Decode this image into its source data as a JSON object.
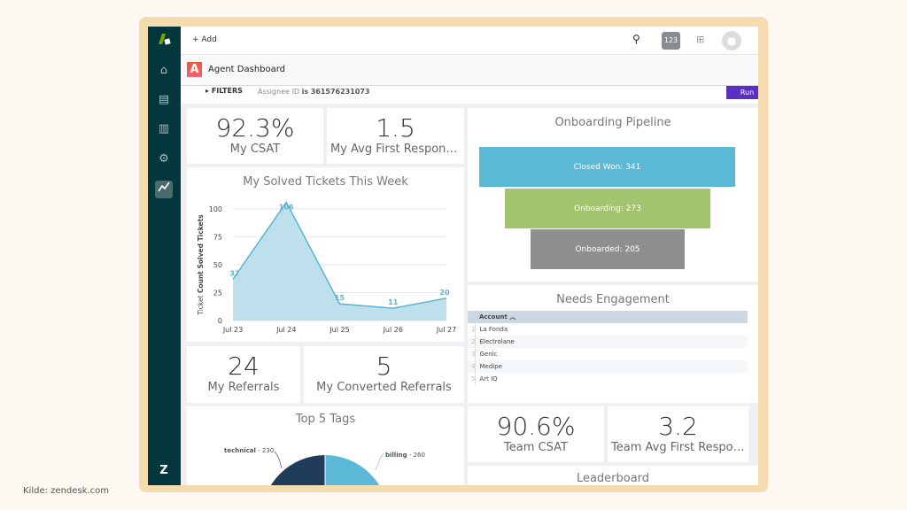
{
  "caption": "Kilde: zendesk.com",
  "topbar": {
    "add_label": "+ Add",
    "badge": "123"
  },
  "header": {
    "logo_letter": "A",
    "title": "Agent Dashboard"
  },
  "filters": {
    "label": "FILTERS",
    "text": "Assignee ID",
    "op": "is",
    "value": "361576231073",
    "run": "Run"
  },
  "kpis": {
    "csat": {
      "value": "92.3%",
      "label": "My CSAT"
    },
    "frt": {
      "value": "1.5",
      "label": "My Avg First Response ..."
    },
    "referrals": {
      "value": "24",
      "label": "My Referrals"
    },
    "converted": {
      "value": "5",
      "label": "My Converted Referrals"
    },
    "team_csat": {
      "value": "90.6%",
      "label": "Team CSAT"
    },
    "team_frt": {
      "value": "3.2",
      "label": "Team Avg First Respon..."
    }
  },
  "chart_data": [
    {
      "type": "area",
      "title": "My Solved Tickets This Week",
      "ylabel_prefix": "Ticket",
      "ylabel": "Count Solved Tickets",
      "categories": [
        "Jul 23",
        "Jul 24",
        "Jul 25",
        "Jul 26",
        "Jul 27"
      ],
      "values": [
        37,
        106,
        15,
        11,
        20
      ],
      "yticks": [
        0,
        25,
        50,
        75,
        100
      ],
      "ylim": [
        0,
        100
      ],
      "grid": true,
      "color": "#5bb4d0"
    },
    {
      "type": "funnel",
      "title": "Onboarding Pipeline",
      "stages": [
        {
          "label": "Closed Won: 341",
          "value": 341,
          "color": "#5bb8d6"
        },
        {
          "label": "Onboarding: 273",
          "value": 273,
          "color": "#a3c46e"
        },
        {
          "label": "Onboarded: 205",
          "value": 205,
          "color": "#8f8f8f"
        }
      ]
    },
    {
      "type": "pie",
      "title": "Top 5 Tags",
      "slices": [
        {
          "name": "technical",
          "value": 230,
          "color": "#1f3d5a"
        },
        {
          "name": "billing",
          "value": 260,
          "color": "#5bb8d6"
        }
      ]
    }
  ],
  "engagement": {
    "title": "Needs Engagement",
    "column": "Account",
    "rows": [
      "La Fonda",
      "Electrolane",
      "Genic",
      "Medipe",
      "Art IQ"
    ]
  },
  "leaderboard": {
    "title": "Leaderboard"
  }
}
